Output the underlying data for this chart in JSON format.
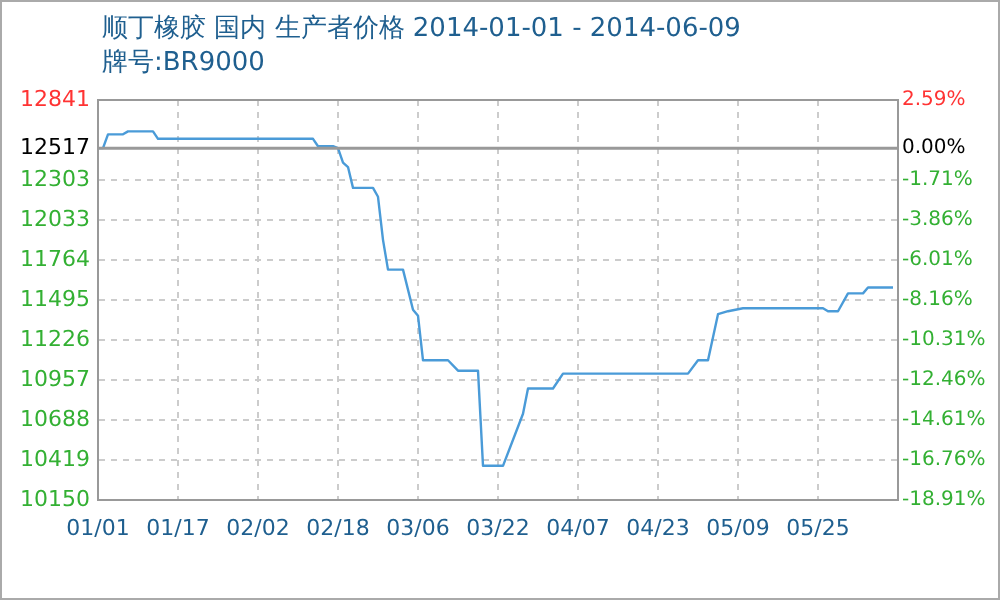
{
  "chart_data": {
    "type": "line",
    "title": "顺丁橡胶 国内 生产者价格 2014-01-01 - 2014-06-09",
    "subtitle": "牌号:BR9000",
    "x": [
      "2014-01-01",
      "2014-01-02",
      "2014-01-03",
      "2014-01-06",
      "2014-01-07",
      "2014-01-12",
      "2014-01-13",
      "2014-02-13",
      "2014-02-14",
      "2014-02-17",
      "2014-02-18",
      "2014-02-19",
      "2014-02-20",
      "2014-02-21",
      "2014-02-25",
      "2014-02-26",
      "2014-02-27",
      "2014-02-28",
      "2014-03-03",
      "2014-03-05",
      "2014-03-06",
      "2014-03-07",
      "2014-03-12",
      "2014-03-14",
      "2014-03-18",
      "2014-03-19",
      "2014-03-23",
      "2014-03-27",
      "2014-03-28",
      "2014-04-02",
      "2014-04-04",
      "2014-04-29",
      "2014-05-01",
      "2014-05-03",
      "2014-05-05",
      "2014-05-07",
      "2014-05-10",
      "2014-05-26",
      "2014-05-27",
      "2014-05-29",
      "2014-05-31",
      "2014-06-03",
      "2014-06-04",
      "2014-06-09"
    ],
    "series": [
      {
        "color": "#4a9bd8",
        "values": [
          12517,
          12517,
          12610,
          12610,
          12630,
          12630,
          12580,
          12580,
          12530,
          12530,
          12517,
          12420,
          12390,
          12250,
          12250,
          12190,
          11900,
          11700,
          11700,
          11430,
          11390,
          11090,
          11090,
          11020,
          11020,
          10380,
          10380,
          10730,
          10900,
          10900,
          11000,
          11000,
          11090,
          11090,
          11400,
          11420,
          11440,
          11440,
          11420,
          11420,
          11540,
          11540,
          11580,
          11580
        ]
      }
    ],
    "xlim": [
      "2014-01-01",
      "2014-06-10"
    ],
    "xticks": [
      {
        "value": "2014-01-01",
        "label": "01/01"
      },
      {
        "value": "2014-01-17",
        "label": "01/17"
      },
      {
        "value": "2014-02-02",
        "label": "02/02"
      },
      {
        "value": "2014-02-18",
        "label": "02/18"
      },
      {
        "value": "2014-03-06",
        "label": "03/06"
      },
      {
        "value": "2014-03-22",
        "label": "03/22"
      },
      {
        "value": "2014-04-07",
        "label": "04/07"
      },
      {
        "value": "2014-04-23",
        "label": "04/23"
      },
      {
        "value": "2014-05-09",
        "label": "05/09"
      },
      {
        "value": "2014-05-25",
        "label": "05/25"
      }
    ],
    "ylim": [
      10150,
      12841
    ],
    "yticks": [
      10150,
      10419,
      10688,
      10957,
      11226,
      11495,
      11764,
      12033,
      12303,
      12517,
      12841
    ],
    "y2lim": [
      -18.91,
      2.59
    ],
    "y2ticks": [
      {
        "value": -18.91,
        "label": "-18.91%"
      },
      {
        "value": -16.76,
        "label": "-16.76%"
      },
      {
        "value": -14.61,
        "label": "-14.61%"
      },
      {
        "value": -12.46,
        "label": "-12.46%"
      },
      {
        "value": -10.31,
        "label": "-10.31%"
      },
      {
        "value": -8.16,
        "label": "-8.16%"
      },
      {
        "value": -6.01,
        "label": "-6.01%"
      },
      {
        "value": -3.86,
        "label": "-3.86%"
      },
      {
        "value": -1.71,
        "label": "-1.71%"
      },
      {
        "value": 0,
        "label": "0.00%"
      },
      {
        "value": 2.59,
        "label": "2.59%"
      }
    ],
    "ref_lines": [
      {
        "axis": "y",
        "value": 12517,
        "color": "#999999"
      }
    ],
    "grid": true,
    "marker": "none",
    "line_style": "solid"
  }
}
